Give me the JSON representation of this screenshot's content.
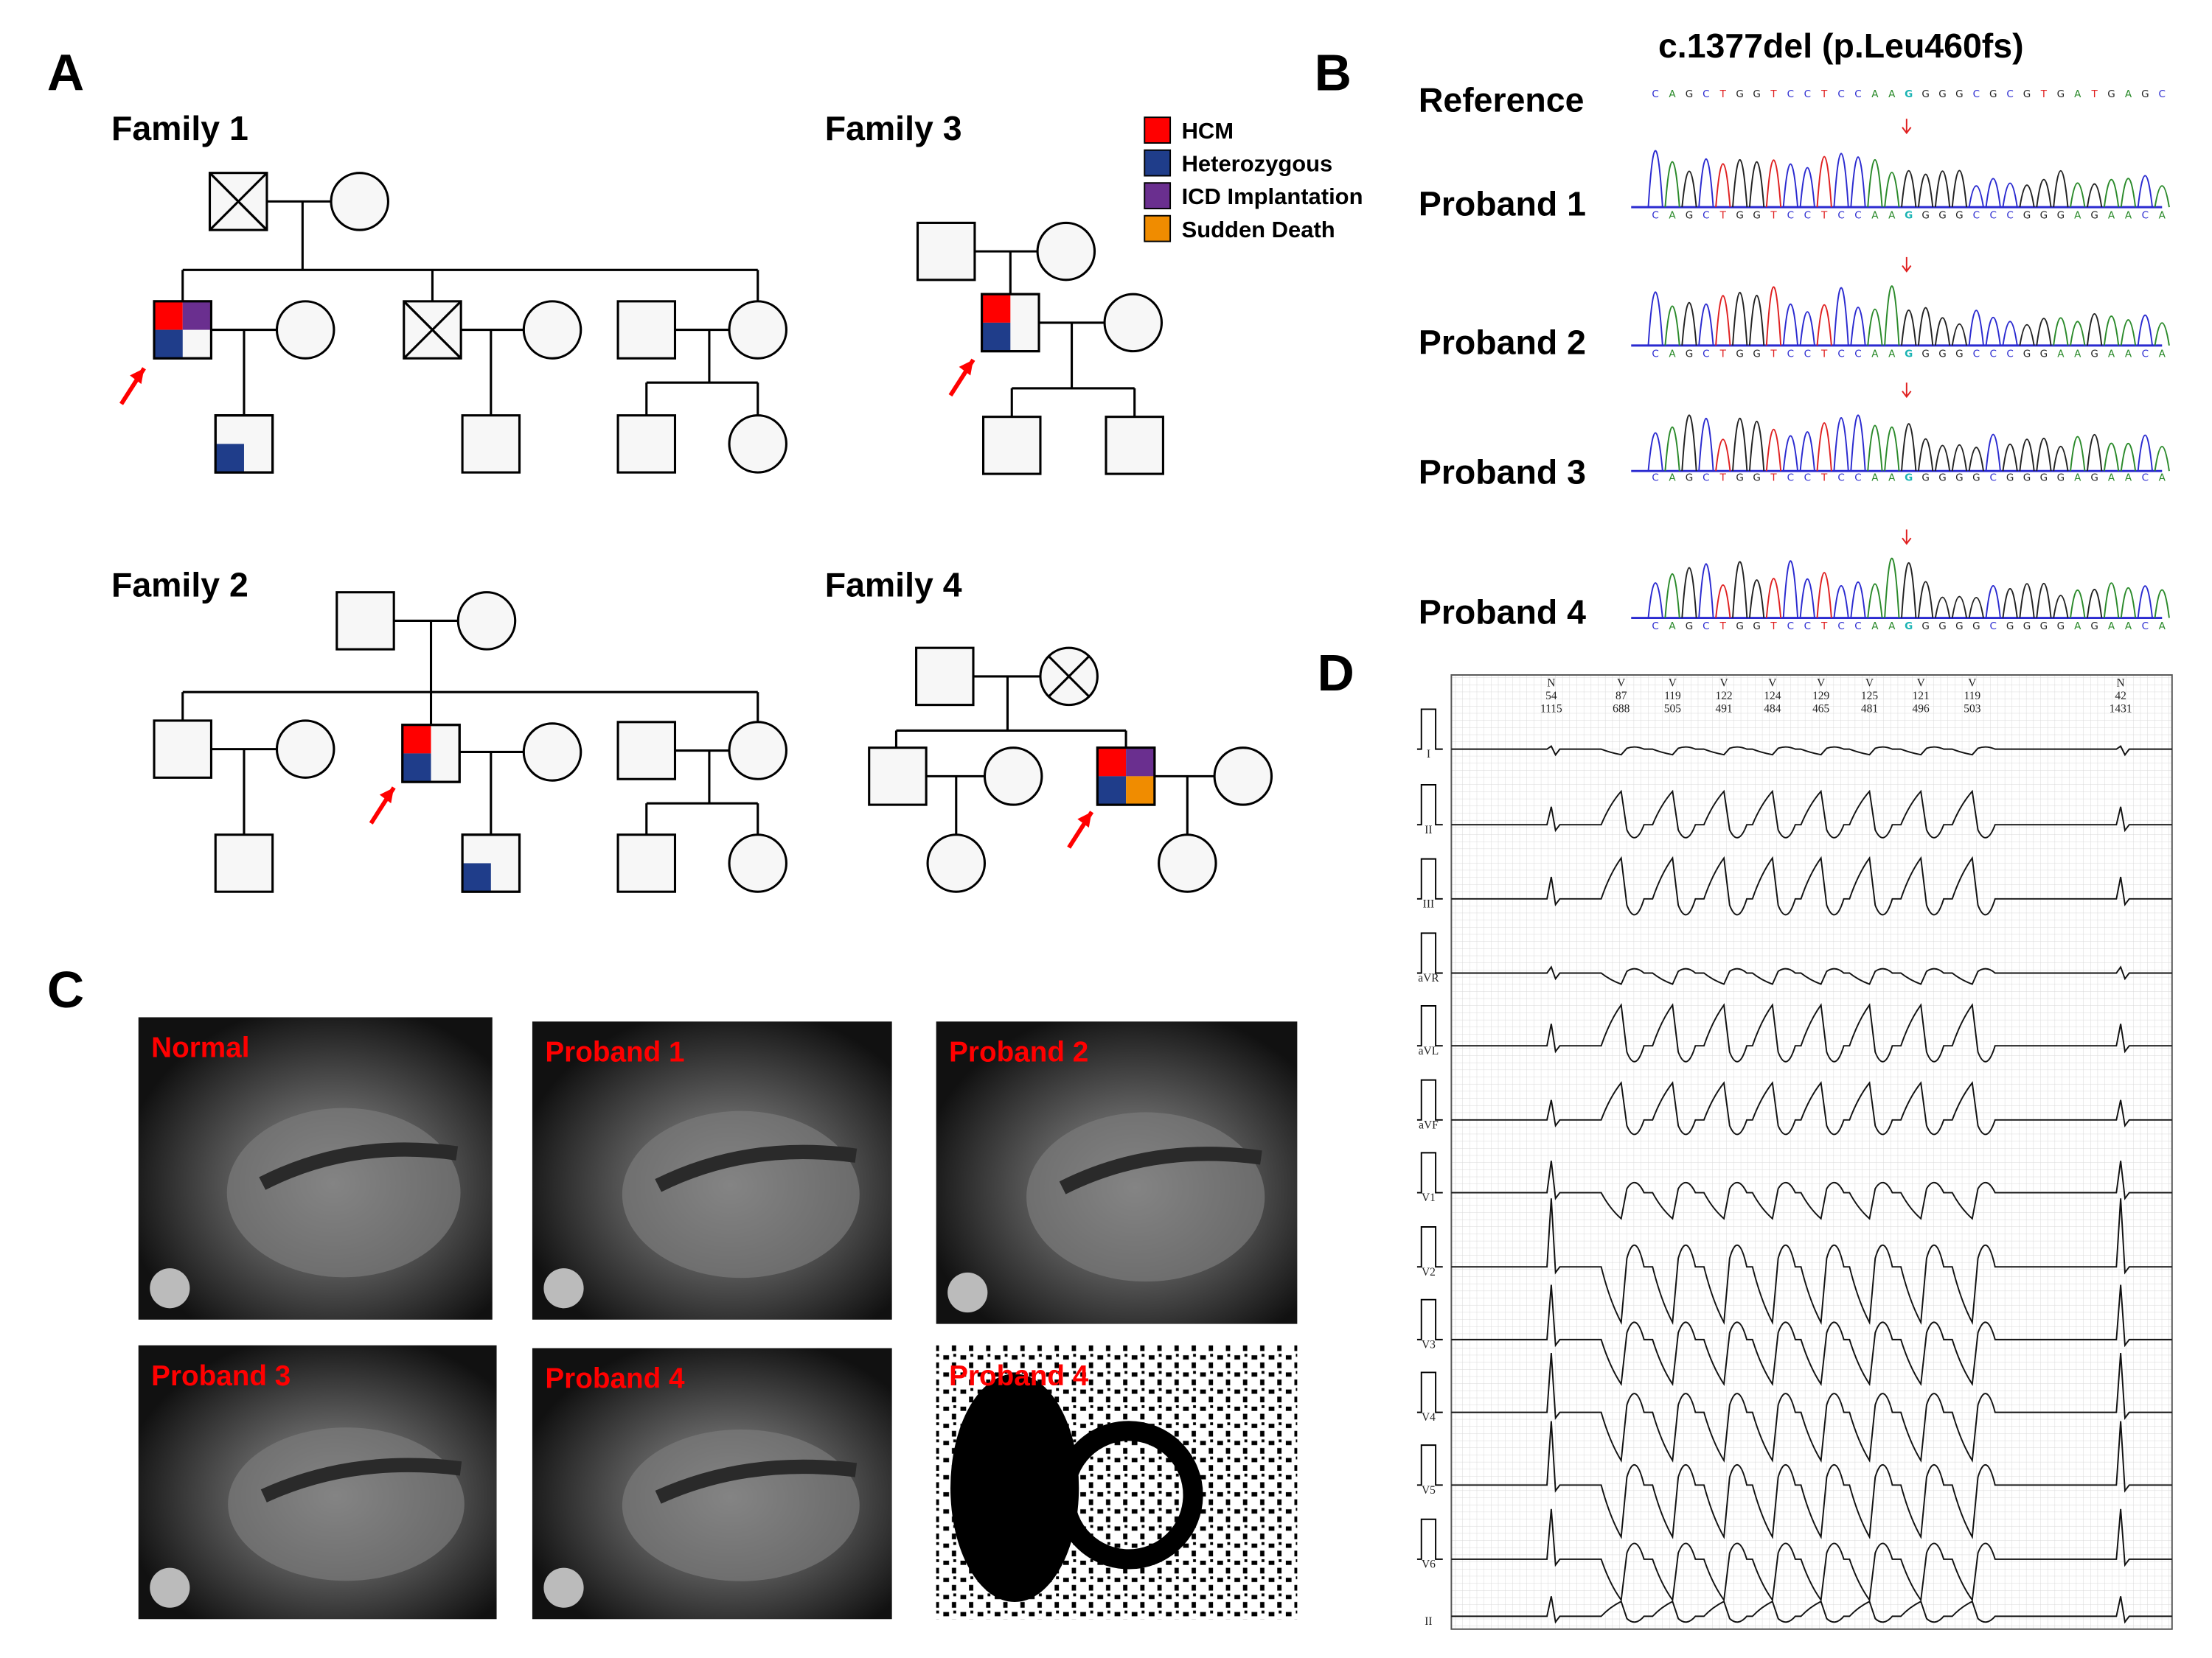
{
  "panels": {
    "a": "A",
    "b": "B",
    "c": "C",
    "d": "D"
  },
  "pedigree": {
    "families": [
      "Family 1",
      "Family 2",
      "Family 3",
      "Family 4"
    ],
    "legend": [
      {
        "label": "HCM",
        "color": "#ff0000"
      },
      {
        "label": "Heterozygous",
        "color": "#1f3d8a"
      },
      {
        "label": "ICD Implantation",
        "color": "#6a2f8f"
      },
      {
        "label": "Sudden Death",
        "color": "#f08c00"
      }
    ],
    "proband_arrow_color": "#ff0000"
  },
  "sequencing": {
    "title": "c.1377del (p.Leu460fs)",
    "rows": [
      {
        "label": "Reference",
        "sequence": "CAGCTGGTCCTCCAAGGGGCGCGTGATGAGC",
        "highlight_index": 15
      },
      {
        "label": "Proband 1",
        "sequence": "CAGCTGGTCCTCCAAGGGGCCCGGGAGAACA",
        "highlight_index": 15
      },
      {
        "label": "Proband 2",
        "sequence": "CAGCTGGTCCTCCAAGGGGCCCGGAAGAACA",
        "highlight_index": 15
      },
      {
        "label": "Proband 3",
        "sequence": "CAGCTGGTCCTCCAAGGGGGCGGGGAGAACA",
        "highlight_index": 15
      },
      {
        "label": "Proband 4",
        "sequence": "CAGCTGGTCCTCCAAGGGGGCGGGGAGAACA",
        "highlight_index": 15
      }
    ],
    "base_colors": {
      "A": "#2a8a2a",
      "C": "#2a2ad0",
      "G": "#222222",
      "T": "#e02020"
    },
    "highlight_color": "#1ab3b3"
  },
  "mri": {
    "labels": [
      "Normal",
      "Proband 1",
      "Proband 2",
      "Proband 3",
      "Proband 4",
      "Proband 4"
    ]
  },
  "ecg": {
    "leads": [
      "I",
      "II",
      "III",
      "aVR",
      "aVL",
      "aVF",
      "V1",
      "V2",
      "V3",
      "V4",
      "V5",
      "V6",
      "II"
    ],
    "beats": [
      {
        "type": "N",
        "hr": "54",
        "rr": "1115"
      },
      {
        "type": "V",
        "hr": "87",
        "rr": "688"
      },
      {
        "type": "V",
        "hr": "119",
        "rr": "505"
      },
      {
        "type": "V",
        "hr": "122",
        "rr": "491"
      },
      {
        "type": "V",
        "hr": "124",
        "rr": "484"
      },
      {
        "type": "V",
        "hr": "129",
        "rr": "465"
      },
      {
        "type": "V",
        "hr": "125",
        "rr": "481"
      },
      {
        "type": "V",
        "hr": "121",
        "rr": "496"
      },
      {
        "type": "V",
        "hr": "119",
        "rr": "503"
      },
      {
        "type": "N",
        "hr": "42",
        "rr": "1431"
      }
    ]
  }
}
